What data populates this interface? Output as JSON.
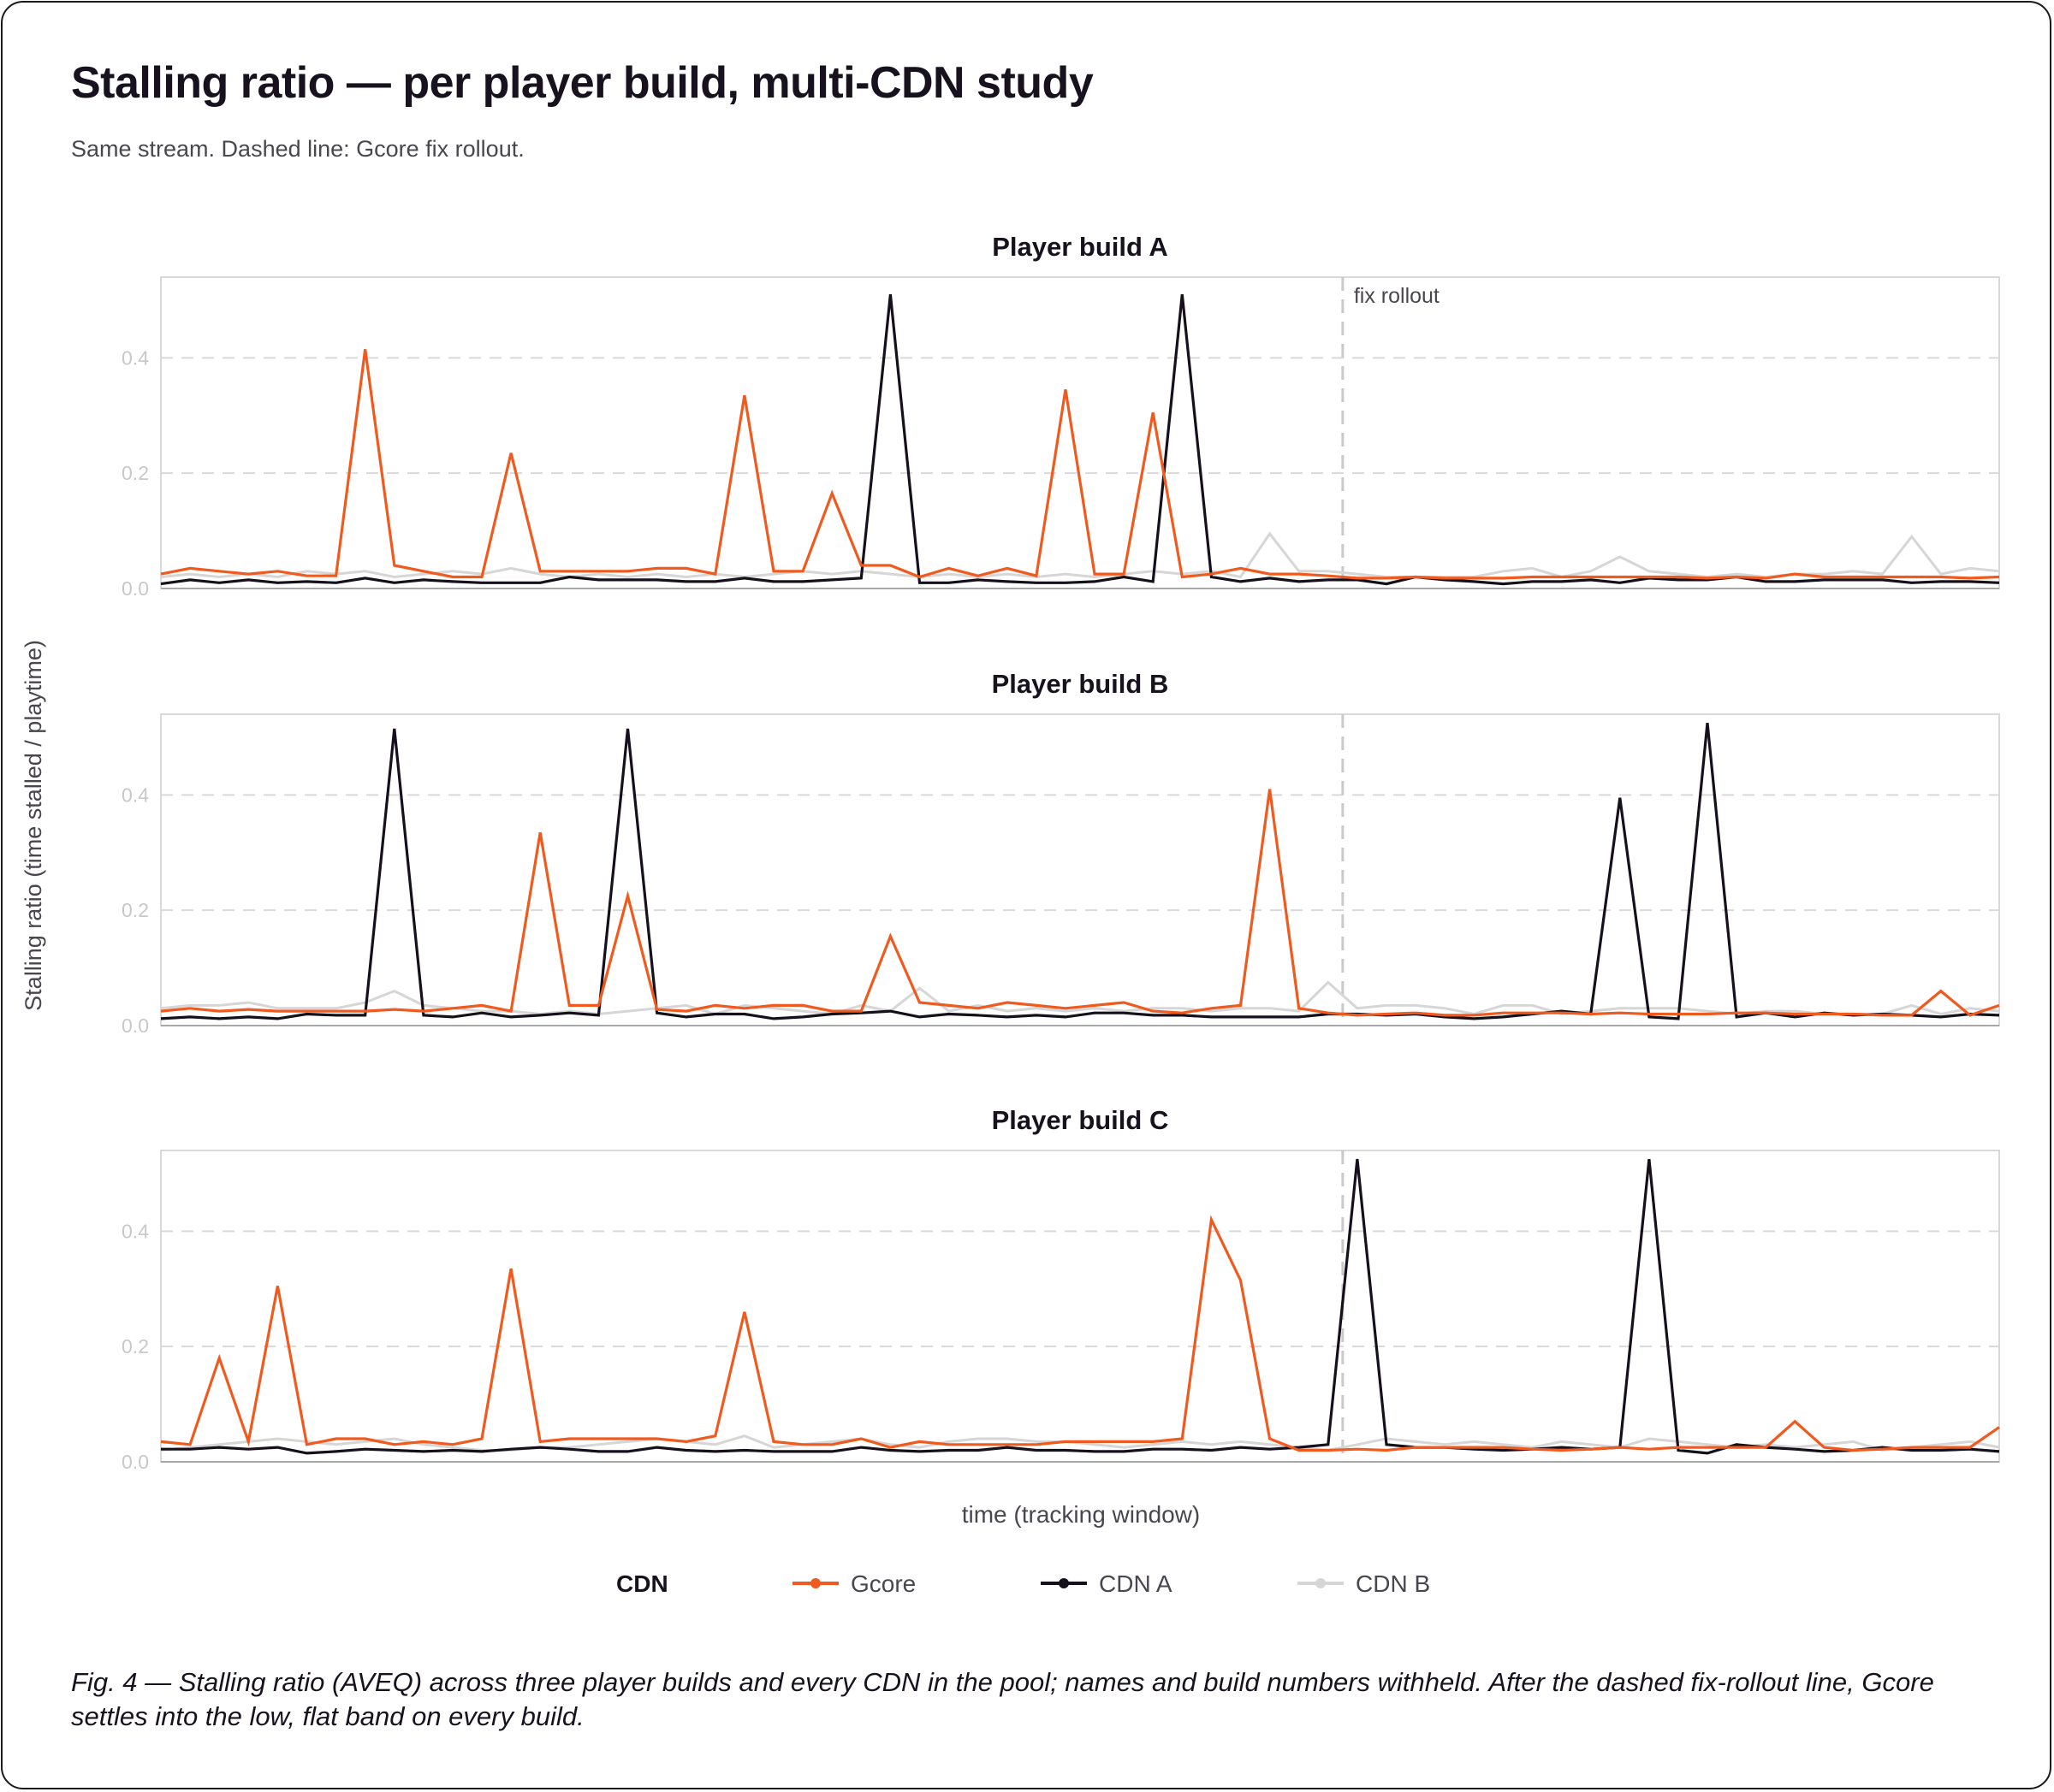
{
  "title": "Stalling ratio — per player build, multi-CDN study",
  "subtitle": "Same stream. Dashed line: Gcore fix rollout.",
  "caption": "Fig. 4 — Stalling ratio (AVEQ) across three player builds and every CDN in the pool; names and build numbers withheld. After the dashed fix-rollout line, Gcore settles into the low, flat band on every build.",
  "chart_data": {
    "type": "line",
    "ylabel": "Stalling ratio (time stalled / playtime)",
    "xlabel": "time (tracking window)",
    "ylim": [
      0,
      0.54
    ],
    "yticks": [
      0.0,
      0.2,
      0.4
    ],
    "ytick_labels": [
      "0.0",
      "0.2",
      "0.4"
    ],
    "x_count": 64,
    "grid": true,
    "annotation": {
      "label": "fix rollout",
      "x_index": 40.5,
      "style": "dashed"
    },
    "legend": {
      "title": "CDN",
      "placement": "bottom",
      "entries": [
        "Gcore",
        "CDN A",
        "CDN B"
      ]
    },
    "colors": {
      "Gcore": "#f05a1e",
      "CDN A": "#15101c",
      "CDN B": "#d6d6d6"
    },
    "panels": [
      {
        "title": "Player build A",
        "series": [
          {
            "name": "CDN B",
            "values": [
              0.02,
              0.025,
              0.02,
              0.025,
              0.02,
              0.03,
              0.025,
              0.03,
              0.02,
              0.025,
              0.03,
              0.025,
              0.035,
              0.025,
              0.02,
              0.025,
              0.02,
              0.025,
              0.02,
              0.025,
              0.02,
              0.025,
              0.03,
              0.025,
              0.03,
              0.025,
              0.02,
              0.025,
              0.02,
              0.025,
              0.02,
              0.025,
              0.02,
              0.025,
              0.03,
              0.025,
              0.03,
              0.02,
              0.095,
              0.03,
              0.03,
              0.025,
              0.02,
              0.02,
              0.02,
              0.02,
              0.03,
              0.035,
              0.02,
              0.03,
              0.055,
              0.03,
              0.025,
              0.02,
              0.025,
              0.02,
              0.025,
              0.025,
              0.03,
              0.025,
              0.09,
              0.025,
              0.035,
              0.03
            ]
          },
          {
            "name": "CDN A",
            "values": [
              0.008,
              0.015,
              0.01,
              0.015,
              0.01,
              0.012,
              0.01,
              0.018,
              0.01,
              0.015,
              0.012,
              0.01,
              0.01,
              0.01,
              0.02,
              0.015,
              0.015,
              0.015,
              0.012,
              0.012,
              0.018,
              0.012,
              0.012,
              0.015,
              0.018,
              0.51,
              0.01,
              0.01,
              0.015,
              0.012,
              0.01,
              0.01,
              0.012,
              0.02,
              0.012,
              0.51,
              0.02,
              0.012,
              0.018,
              0.012,
              0.015,
              0.015,
              0.008,
              0.02,
              0.015,
              0.012,
              0.008,
              0.012,
              0.012,
              0.015,
              0.01,
              0.018,
              0.015,
              0.015,
              0.02,
              0.012,
              0.012,
              0.015,
              0.015,
              0.015,
              0.01,
              0.012,
              0.012,
              0.01
            ]
          },
          {
            "name": "Gcore",
            "values": [
              0.025,
              0.035,
              0.03,
              0.025,
              0.03,
              0.022,
              0.022,
              0.415,
              0.04,
              0.03,
              0.02,
              0.02,
              0.235,
              0.03,
              0.03,
              0.03,
              0.03,
              0.035,
              0.035,
              0.025,
              0.335,
              0.03,
              0.03,
              0.165,
              0.04,
              0.04,
              0.02,
              0.035,
              0.022,
              0.035,
              0.022,
              0.345,
              0.025,
              0.025,
              0.305,
              0.02,
              0.025,
              0.035,
              0.025,
              0.025,
              0.022,
              0.018,
              0.018,
              0.02,
              0.018,
              0.018,
              0.018,
              0.02,
              0.02,
              0.02,
              0.02,
              0.02,
              0.02,
              0.018,
              0.02,
              0.018,
              0.025,
              0.02,
              0.02,
              0.02,
              0.02,
              0.02,
              0.018,
              0.02
            ]
          }
        ]
      },
      {
        "title": "Player build B",
        "series": [
          {
            "name": "CDN B",
            "values": [
              0.03,
              0.035,
              0.035,
              0.04,
              0.03,
              0.03,
              0.03,
              0.04,
              0.06,
              0.035,
              0.03,
              0.025,
              0.025,
              0.02,
              0.025,
              0.02,
              0.025,
              0.03,
              0.035,
              0.02,
              0.035,
              0.03,
              0.025,
              0.02,
              0.035,
              0.025,
              0.065,
              0.025,
              0.035,
              0.025,
              0.03,
              0.025,
              0.03,
              0.025,
              0.03,
              0.03,
              0.025,
              0.03,
              0.03,
              0.025,
              0.075,
              0.03,
              0.035,
              0.035,
              0.03,
              0.02,
              0.035,
              0.035,
              0.02,
              0.025,
              0.03,
              0.03,
              0.03,
              0.025,
              0.02,
              0.025,
              0.025,
              0.02,
              0.02,
              0.02,
              0.035,
              0.02,
              0.03,
              0.025
            ]
          },
          {
            "name": "CDN A",
            "values": [
              0.012,
              0.015,
              0.012,
              0.015,
              0.012,
              0.02,
              0.018,
              0.018,
              0.515,
              0.018,
              0.015,
              0.022,
              0.015,
              0.018,
              0.022,
              0.018,
              0.515,
              0.022,
              0.015,
              0.02,
              0.02,
              0.012,
              0.015,
              0.02,
              0.022,
              0.025,
              0.015,
              0.02,
              0.018,
              0.015,
              0.018,
              0.015,
              0.022,
              0.022,
              0.018,
              0.018,
              0.015,
              0.015,
              0.015,
              0.015,
              0.02,
              0.02,
              0.018,
              0.02,
              0.015,
              0.012,
              0.015,
              0.02,
              0.025,
              0.02,
              0.395,
              0.015,
              0.012,
              0.525,
              0.015,
              0.022,
              0.015,
              0.022,
              0.018,
              0.02,
              0.018,
              0.015,
              0.02,
              0.018
            ]
          },
          {
            "name": "Gcore",
            "values": [
              0.025,
              0.03,
              0.025,
              0.028,
              0.025,
              0.025,
              0.025,
              0.025,
              0.028,
              0.025,
              0.03,
              0.035,
              0.025,
              0.335,
              0.035,
              0.035,
              0.225,
              0.028,
              0.025,
              0.035,
              0.03,
              0.035,
              0.035,
              0.025,
              0.025,
              0.155,
              0.04,
              0.035,
              0.03,
              0.04,
              0.035,
              0.03,
              0.035,
              0.04,
              0.025,
              0.022,
              0.03,
              0.035,
              0.41,
              0.03,
              0.022,
              0.018,
              0.02,
              0.022,
              0.018,
              0.018,
              0.022,
              0.022,
              0.022,
              0.02,
              0.022,
              0.02,
              0.02,
              0.02,
              0.022,
              0.022,
              0.02,
              0.02,
              0.02,
              0.018,
              0.018,
              0.06,
              0.018,
              0.035
            ]
          }
        ]
      },
      {
        "title": "Player build C",
        "series": [
          {
            "name": "CDN B",
            "values": [
              0.02,
              0.025,
              0.03,
              0.035,
              0.04,
              0.035,
              0.03,
              0.035,
              0.04,
              0.03,
              0.025,
              0.02,
              0.02,
              0.025,
              0.025,
              0.03,
              0.035,
              0.04,
              0.035,
              0.03,
              0.045,
              0.025,
              0.03,
              0.035,
              0.04,
              0.03,
              0.025,
              0.035,
              0.04,
              0.04,
              0.035,
              0.035,
              0.03,
              0.025,
              0.03,
              0.035,
              0.03,
              0.035,
              0.03,
              0.025,
              0.02,
              0.03,
              0.04,
              0.035,
              0.03,
              0.035,
              0.03,
              0.025,
              0.035,
              0.03,
              0.025,
              0.04,
              0.035,
              0.03,
              0.025,
              0.03,
              0.025,
              0.03,
              0.035,
              0.02,
              0.025,
              0.03,
              0.035,
              0.025
            ]
          },
          {
            "name": "CDN A",
            "values": [
              0.022,
              0.022,
              0.025,
              0.022,
              0.025,
              0.015,
              0.018,
              0.022,
              0.02,
              0.018,
              0.02,
              0.018,
              0.022,
              0.025,
              0.022,
              0.018,
              0.018,
              0.025,
              0.02,
              0.018,
              0.02,
              0.018,
              0.018,
              0.018,
              0.025,
              0.02,
              0.018,
              0.02,
              0.02,
              0.025,
              0.02,
              0.02,
              0.018,
              0.018,
              0.022,
              0.022,
              0.02,
              0.025,
              0.022,
              0.025,
              0.03,
              0.525,
              0.03,
              0.025,
              0.025,
              0.022,
              0.02,
              0.022,
              0.025,
              0.022,
              0.025,
              0.525,
              0.02,
              0.015,
              0.03,
              0.025,
              0.022,
              0.018,
              0.02,
              0.025,
              0.02,
              0.02,
              0.022,
              0.018
            ]
          },
          {
            "name": "Gcore",
            "values": [
              0.035,
              0.03,
              0.18,
              0.035,
              0.305,
              0.03,
              0.04,
              0.04,
              0.03,
              0.035,
              0.03,
              0.04,
              0.335,
              0.035,
              0.04,
              0.04,
              0.04,
              0.04,
              0.035,
              0.045,
              0.26,
              0.035,
              0.03,
              0.03,
              0.04,
              0.025,
              0.035,
              0.03,
              0.03,
              0.03,
              0.03,
              0.035,
              0.035,
              0.035,
              0.035,
              0.04,
              0.42,
              0.315,
              0.04,
              0.02,
              0.02,
              0.022,
              0.02,
              0.025,
              0.025,
              0.025,
              0.025,
              0.022,
              0.02,
              0.022,
              0.025,
              0.022,
              0.025,
              0.025,
              0.025,
              0.025,
              0.07,
              0.025,
              0.02,
              0.022,
              0.025,
              0.025,
              0.025,
              0.06
            ]
          }
        ]
      }
    ]
  }
}
